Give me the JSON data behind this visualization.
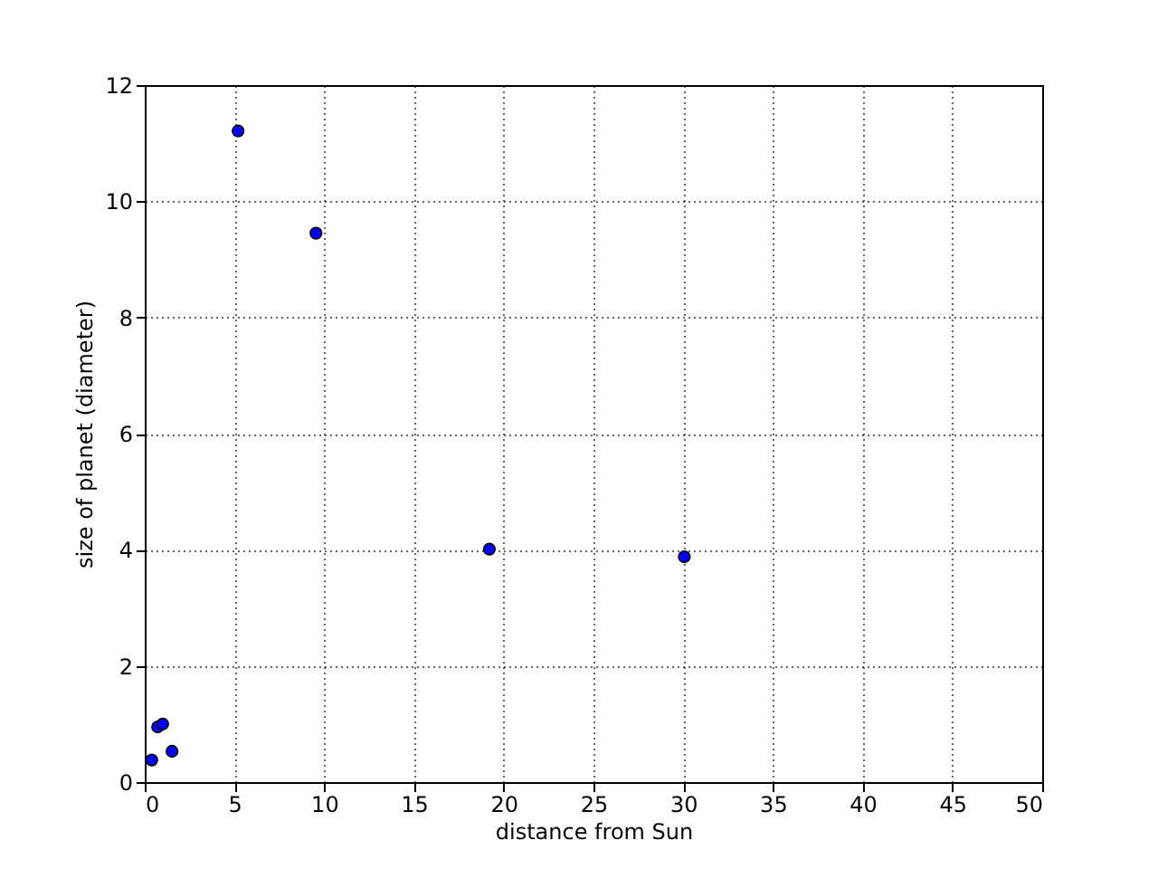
{
  "chart_data": {
    "type": "scatter",
    "xlabel": "distance from Sun",
    "ylabel": "size of planet (diameter)",
    "x": [
      0.39,
      0.72,
      1.0,
      1.52,
      5.2,
      9.54,
      19.2,
      30.06
    ],
    "series": [
      {
        "color": "#0000ff",
        "values": [
          0.38,
          0.95,
          1.0,
          0.53,
          11.21,
          9.45,
          4.01,
          3.88
        ]
      }
    ],
    "xlim": [
      0,
      50
    ],
    "xticks": [
      0,
      5,
      10,
      15,
      20,
      25,
      30,
      35,
      40,
      45,
      50
    ],
    "ylim": [
      0,
      12
    ],
    "yticks": [
      0,
      2,
      4,
      6,
      8,
      10,
      12
    ],
    "grid": true,
    "marker": "circle",
    "legend": false
  }
}
